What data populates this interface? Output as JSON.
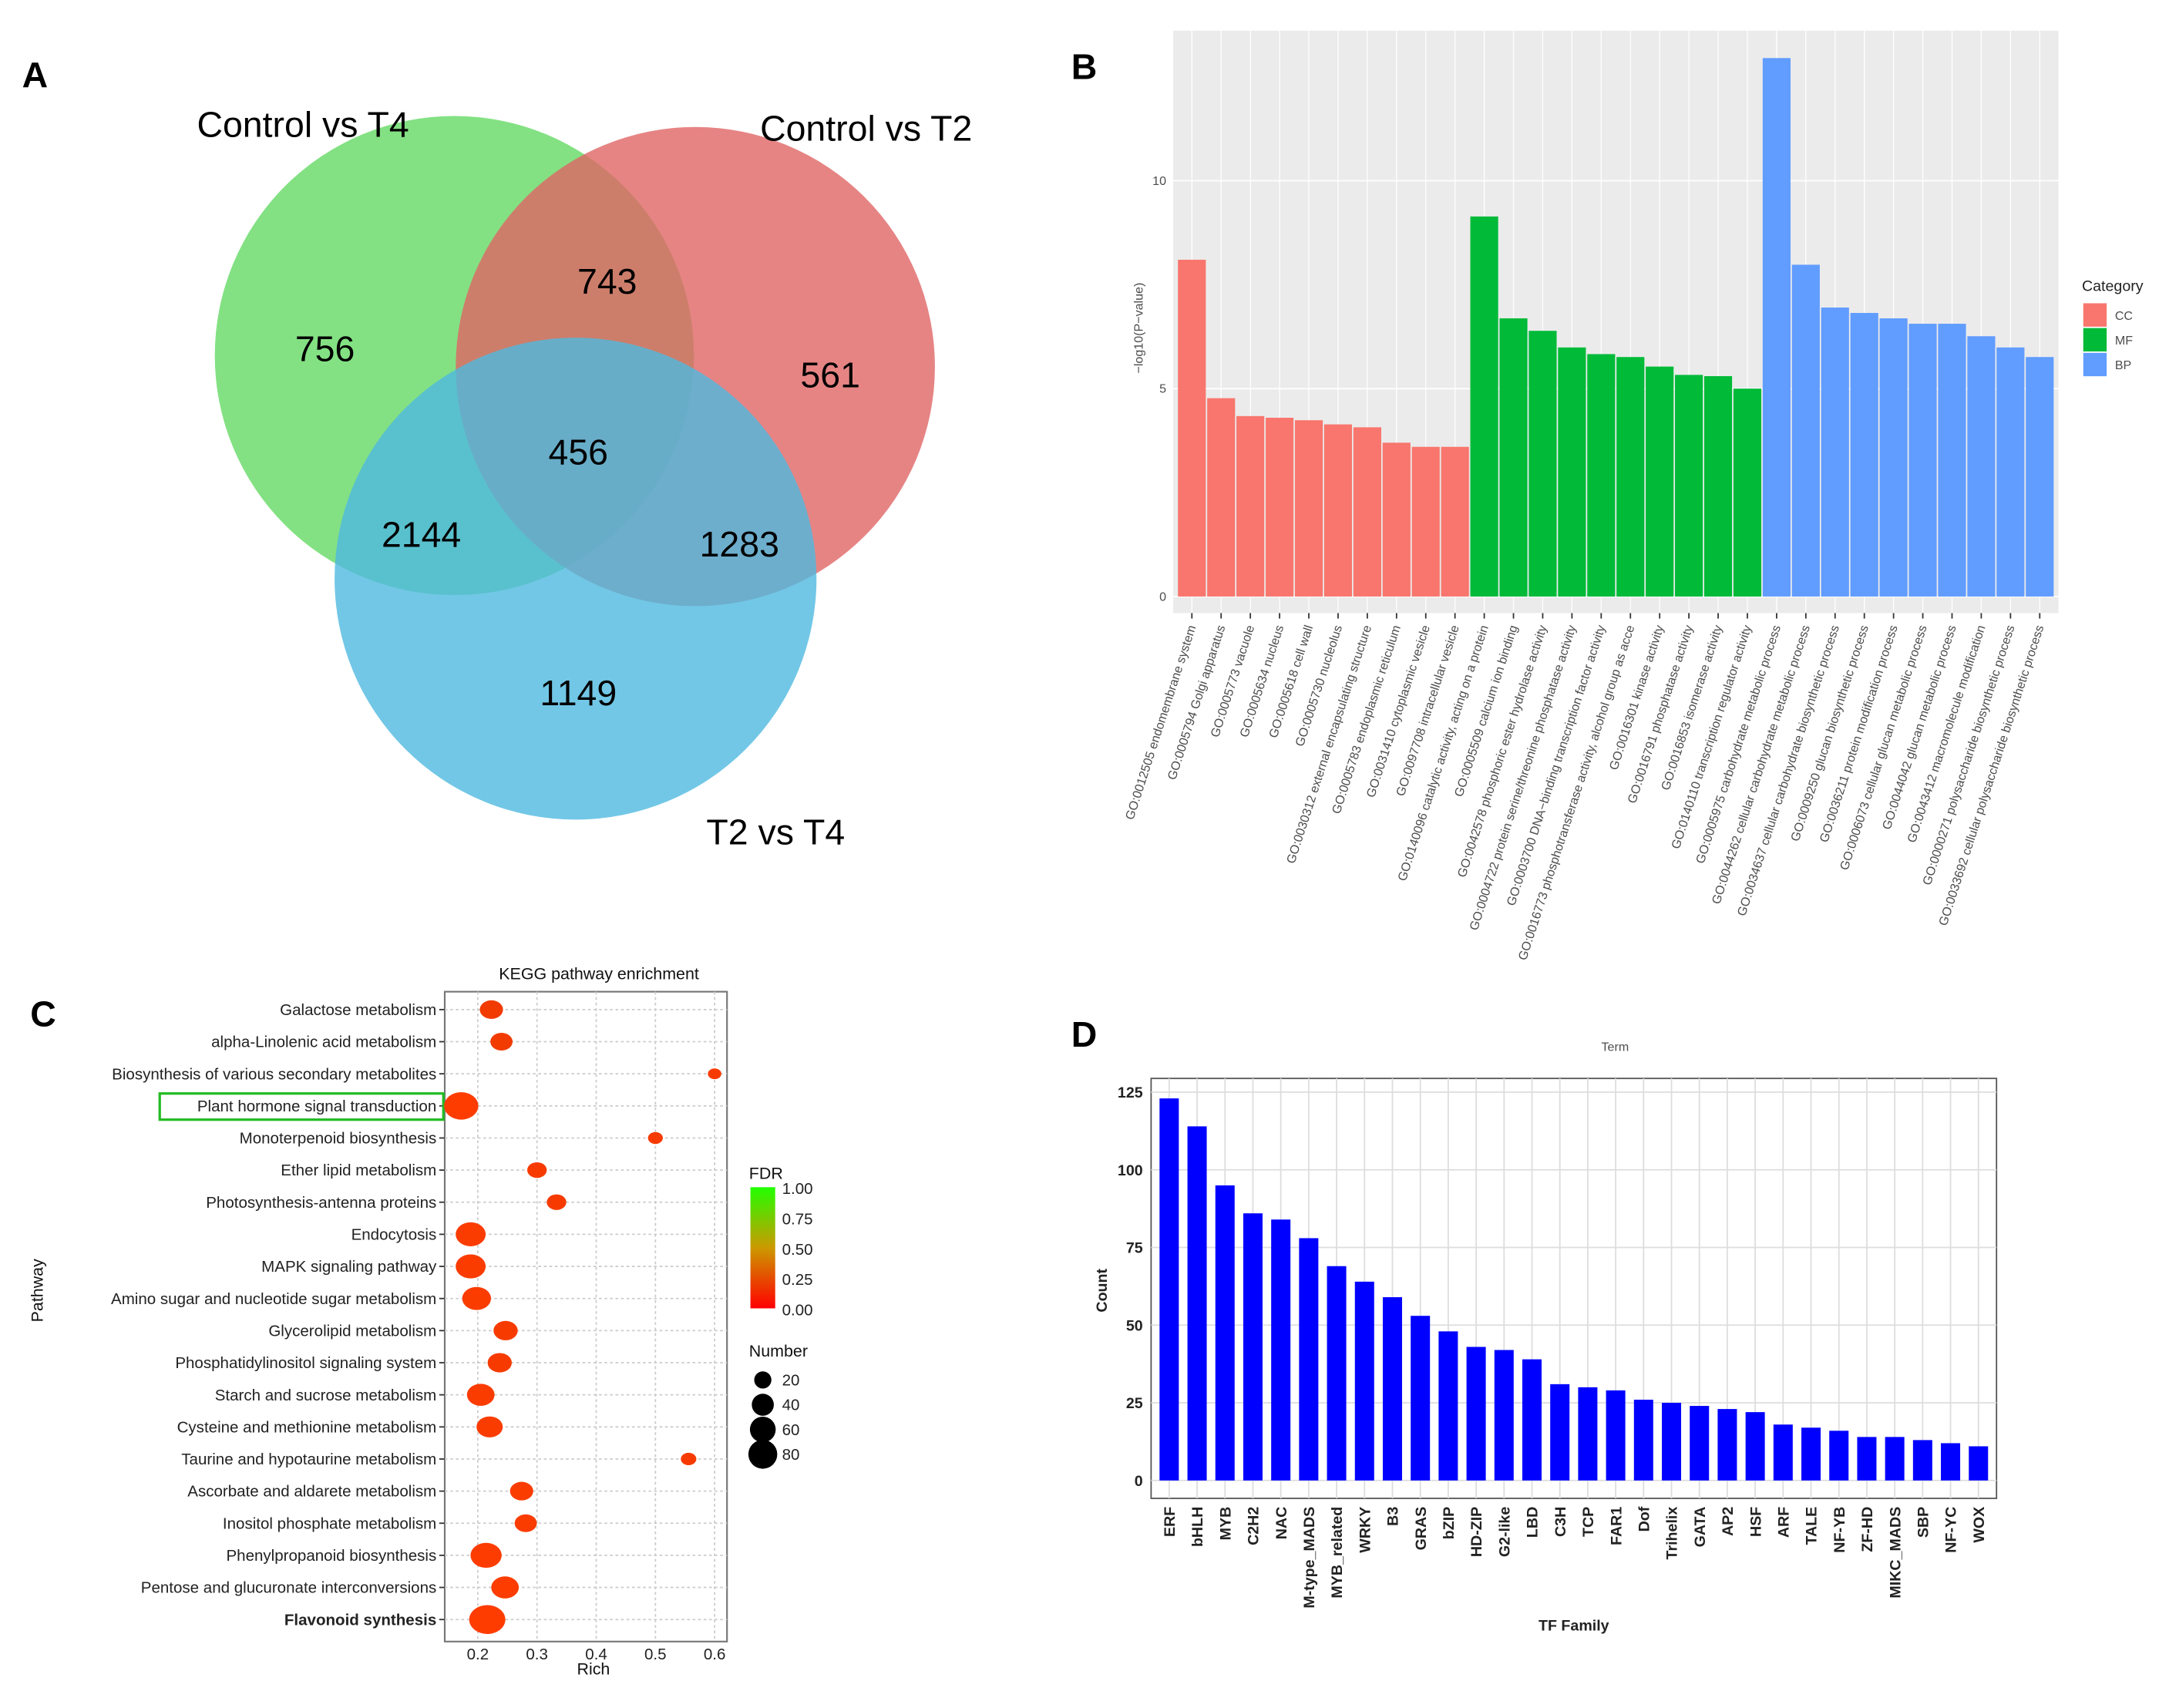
{
  "panels": {
    "a": "A",
    "b": "B",
    "c": "C",
    "d": "D"
  },
  "colors": {
    "cc": "#f8766d",
    "mf": "#00ba38",
    "bp": "#619cff",
    "tf_bar": "#0000ff",
    "venn_green": "#6ddc6d",
    "venn_red": "#e06565",
    "venn_blue": "#4fb9e0",
    "highlight_box": "#22bb22"
  },
  "chart_data": [
    {
      "type": "venn",
      "sets": [
        "Control vs T4",
        "Control vs T2",
        "T2 vs T4"
      ],
      "regions": {
        "only_control_vs_t4": 756,
        "only_control_vs_t2": 561,
        "only_t2_vs_t4": 1149,
        "control_vs_t4_and_control_vs_t2": 743,
        "control_vs_t4_and_t2_vs_t4": 2144,
        "control_vs_t2_and_t2_vs_t4": 1283,
        "all_three": 456
      }
    },
    {
      "type": "bar",
      "xlabel": "Term",
      "ylabel": "−log10(P−value)",
      "ylim": [
        0,
        14
      ],
      "yticks": [
        0,
        5,
        10
      ],
      "grid": true,
      "legend": {
        "title": "Category",
        "placement": "right",
        "entries": [
          "CC",
          "MF",
          "BP"
        ]
      },
      "categories": [
        "GO:0012505 endomembrane system",
        "GO:0005794 Golgi apparatus",
        "GO:0005773 vacuole",
        "GO:0005634 nucleus",
        "GO:0005618 cell wall",
        "GO:0005730 nucleolus",
        "GO:0030312 external encapsulating structure",
        "GO:0005783 endoplasmic reticulum",
        "GO:0031410 cytoplasmic vesicle",
        "GO:0097708 intracellular vesicle",
        "GO:0140096 catalytic activity, acting on a protein",
        "GO:0005509 calcium ion binding",
        "GO:0042578 phosphoric ester hydrolase activity",
        "GO:0004722 protein serine/threonine phosphatase activity",
        "GO:0003700 DNA−binding transcription factor activity",
        "GO:0016773 phosphotransferase activity, alcohol group as acce",
        "GO:0016301 kinase activity",
        "GO:0016791 phosphatase activity",
        "GO:0016853 isomerase activity",
        "GO:0140110 transcription regulator activity",
        "GO:0005975 carbohydrate metabolic process",
        "GO:0044262 cellular carbohydrate metabolic process",
        "GO:0034637 cellular carbohydrate biosynthetic process",
        "GO:0009250 glucan biosynthetic process",
        "GO:0036211 protein modification process",
        "GO:0006073 cellular glucan metabolic process",
        "GO:0044042 glucan metabolic process",
        "GO:0043412 macromolecule modification",
        "GO:0000271 polysaccharide biosynthetic process",
        "GO:0033692 cellular polysaccharide biosynthetic process"
      ],
      "category_group": [
        "CC",
        "CC",
        "CC",
        "CC",
        "CC",
        "CC",
        "CC",
        "CC",
        "CC",
        "CC",
        "MF",
        "MF",
        "MF",
        "MF",
        "MF",
        "MF",
        "MF",
        "MF",
        "MF",
        "MF",
        "BP",
        "BP",
        "BP",
        "BP",
        "BP",
        "BP",
        "BP",
        "BP",
        "BP",
        "BP"
      ],
      "values": [
        8.1,
        4.77,
        4.34,
        4.3,
        4.24,
        4.14,
        4.07,
        3.7,
        3.6,
        3.6,
        9.14,
        6.69,
        6.39,
        5.99,
        5.83,
        5.76,
        5.53,
        5.33,
        5.3,
        5.0,
        12.95,
        7.98,
        6.95,
        6.82,
        6.69,
        6.56,
        6.56,
        6.26,
        5.99,
        5.76
      ]
    },
    {
      "type": "scatter",
      "title": "KEGG pathway enrichment",
      "xlabel": "Rich",
      "ylabel": "Pathway",
      "xlim": [
        0.145,
        0.62
      ],
      "xticks": [
        0.2,
        0.3,
        0.4,
        0.5,
        0.6
      ],
      "grid": true,
      "highlighted": "Plant hormone signal transduction",
      "bold": "Flavonoid synthesis",
      "legend": {
        "color_title": "FDR",
        "color_ticks": [
          "1.00",
          "0.75",
          "0.50",
          "0.25",
          "0.00"
        ],
        "color_range": [
          "#ff0000",
          "#00ff00"
        ],
        "size_title": "Number",
        "size_ticks": [
          20,
          40,
          60,
          80
        ],
        "placement": "right"
      },
      "pathways": [
        "Galactose metabolism",
        "alpha-Linolenic acid metabolism",
        "Biosynthesis of various secondary metabolites",
        "Plant hormone signal transduction",
        "Monoterpenoid biosynthesis",
        "Ether lipid metabolism",
        "Photosynthesis-antenna proteins",
        "Endocytosis",
        "MAPK signaling pathway",
        "Amino sugar and nucleotide sugar metabolism",
        "Glycerolipid metabolism",
        "Phosphatidylinositol signaling system",
        "Starch and sucrose metabolism",
        "Cysteine and methionine metabolism",
        "Taurine and hypotaurine metabolism",
        "Ascorbate and aldarete metabolism",
        "Inositol phosphate metabolism",
        "Phenylpropanoid biosynthesis",
        "Pentose and glucuronate interconversions",
        "Flavonoid synthesis"
      ],
      "rich": [
        0.223,
        0.24,
        0.6,
        0.172,
        0.5,
        0.3,
        0.333,
        0.188,
        0.188,
        0.198,
        0.247,
        0.237,
        0.205,
        0.22,
        0.556,
        0.274,
        0.281,
        0.214,
        0.246,
        0.216
      ],
      "number": [
        25,
        22,
        4,
        70,
        6,
        15,
        15,
        50,
        50,
        45,
        28,
        28,
        40,
        35,
        7,
        25,
        22,
        55,
        40,
        80
      ],
      "fdr": [
        0.05,
        0.05,
        0.03,
        0.0,
        0.03,
        0.03,
        0.03,
        0.02,
        0.02,
        0.02,
        0.03,
        0.03,
        0.02,
        0.02,
        0.03,
        0.02,
        0.02,
        0.01,
        0.01,
        0.0
      ]
    },
    {
      "type": "bar",
      "xlabel": "TF Family",
      "ylabel": "Count",
      "ylim": [
        0,
        130
      ],
      "yticks": [
        0,
        25,
        50,
        75,
        100,
        125
      ],
      "grid": true,
      "categories": [
        "ERF",
        "bHLH",
        "MYB",
        "C2H2",
        "NAC",
        "M-type_MADS",
        "MYB_related",
        "WRKY",
        "B3",
        "GRAS",
        "bZIP",
        "HD-ZIP",
        "G2-like",
        "LBD",
        "C3H",
        "TCP",
        "FAR1",
        "Dof",
        "Trihelix",
        "GATA",
        "AP2",
        "HSF",
        "ARF",
        "TALE",
        "NF-YB",
        "ZF-HD",
        "MIKC_MADS",
        "SBP",
        "NF-YC",
        "WOX"
      ],
      "values": [
        123,
        114,
        95,
        86,
        84,
        78,
        69,
        64,
        59,
        53,
        48,
        43,
        42,
        39,
        31,
        30,
        29,
        26,
        25,
        24,
        23,
        22,
        18,
        17,
        16,
        14,
        14,
        13,
        12,
        11
      ]
    }
  ]
}
